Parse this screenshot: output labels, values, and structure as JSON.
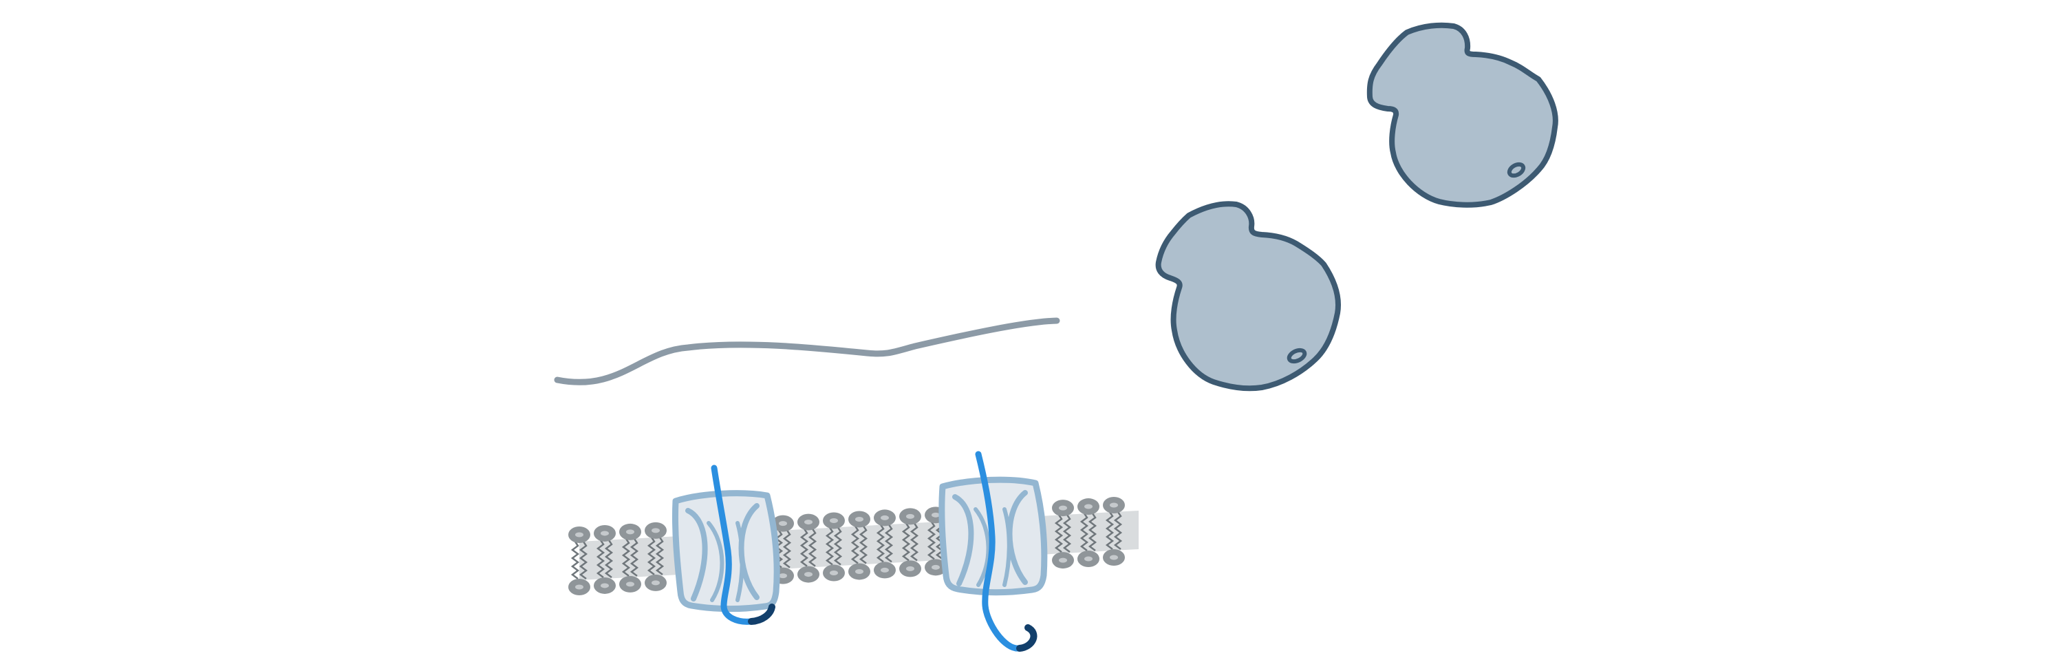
{
  "diagram": {
    "colors": {
      "background": "#ffffff",
      "mrna_strand": "#8c9aa6",
      "ribosome_fill": "#aebfcd",
      "ribosome_outline": "#3d5a72",
      "lipid_head": "#8f9599",
      "lipid_head_highlight": "#c5c9cc",
      "lipid_tail": "#6f767b",
      "membrane_core": "#d9dcde",
      "translocon_fill": "#e2e8ee",
      "translocon_outline": "#93b6d1",
      "nascent_chain": "#2b8fe0",
      "signal_sequence": "#123f6b"
    },
    "elements": {
      "mrna": "mrna-strand",
      "ribosomes": [
        "free-ribosome",
        "free-ribosome"
      ],
      "membrane": "er-membrane-lipid-bilayer",
      "translocons": [
        "sec61-translocon",
        "sec61-translocon"
      ]
    }
  }
}
